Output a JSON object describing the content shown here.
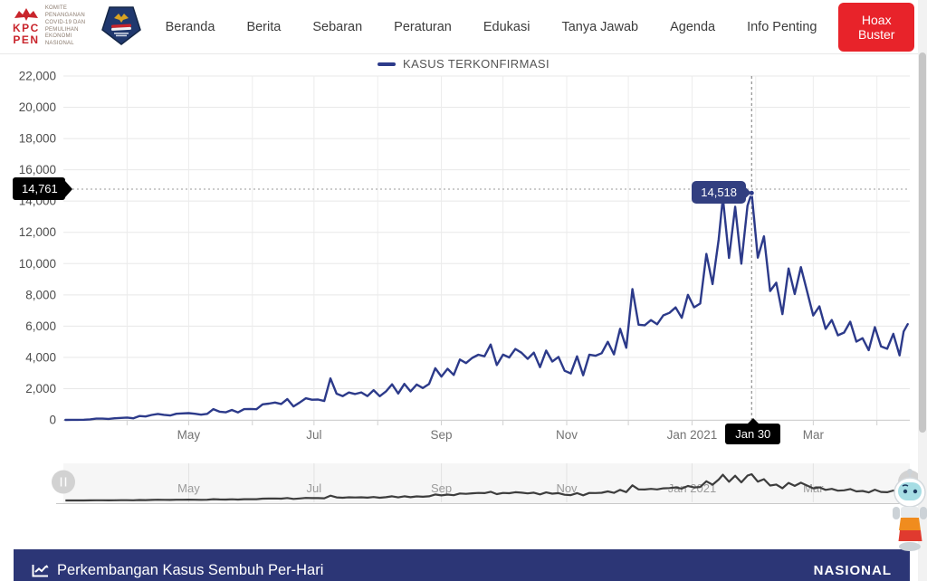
{
  "brand": {
    "kpc_line1": "KPC",
    "kpc_line2": "PEN",
    "committee": [
      "KOMITE PENANGANAN",
      "COVID-19 DAN PEMULIHAN",
      "EKONOMI NASIONAL"
    ]
  },
  "nav": {
    "items": [
      "Beranda",
      "Berita",
      "Sebaran",
      "Peraturan",
      "Edukasi",
      "Tanya Jawab",
      "Agenda",
      "Info Penting"
    ],
    "hoax_buster": "Hoax Buster"
  },
  "chart": {
    "legend_label": "KASUS TERKONFIRMASI",
    "max_label": "14,761",
    "tooltip_label": "14,518",
    "crosshair_date_label": "Jan 30"
  },
  "chart_data": {
    "type": "line",
    "title": "",
    "xlabel": "",
    "ylabel": "",
    "ylim": [
      0,
      22000
    ],
    "ytick_step": 2000,
    "grid": true,
    "legend_position": "top-center",
    "x_range": [
      "2020-03-01",
      "2021-04-17"
    ],
    "x_ticks": [
      {
        "date": "2020-05-01",
        "label": "May"
      },
      {
        "date": "2020-07-01",
        "label": "Jul"
      },
      {
        "date": "2020-09-01",
        "label": "Sep"
      },
      {
        "date": "2020-11-01",
        "label": "Nov"
      },
      {
        "date": "2021-01-01",
        "label": "Jan 2021"
      },
      {
        "date": "2021-03-01",
        "label": "Mar"
      }
    ],
    "annotations": {
      "max_line": {
        "value": 14761,
        "label": "14,761"
      },
      "tooltip": {
        "date": "2021-01-30",
        "value": 14518,
        "label": "14,518"
      },
      "crosshair_date_label": "Jan 30"
    },
    "colors": {
      "series": "#2c3a8a",
      "tooltip_bg": "#323f80",
      "navigator_series": "#3d3d3d",
      "footer_bar": "#2c3676",
      "hoax_button": "#e8232a"
    },
    "series": [
      {
        "name": "KASUS TERKONFIRMASI",
        "color": "#2c3a8a",
        "points": [
          [
            "2020-03-02",
            2
          ],
          [
            "2020-03-05",
            4
          ],
          [
            "2020-03-08",
            8
          ],
          [
            "2020-03-11",
            14
          ],
          [
            "2020-03-14",
            35
          ],
          [
            "2020-03-17",
            81
          ],
          [
            "2020-03-20",
            82
          ],
          [
            "2020-03-23",
            65
          ],
          [
            "2020-03-26",
            103
          ],
          [
            "2020-03-29",
            130
          ],
          [
            "2020-04-01",
            149
          ],
          [
            "2020-04-04",
            106
          ],
          [
            "2020-04-07",
            247
          ],
          [
            "2020-04-10",
            219
          ],
          [
            "2020-04-13",
            316
          ],
          [
            "2020-04-16",
            380
          ],
          [
            "2020-04-19",
            327
          ],
          [
            "2020-04-22",
            283
          ],
          [
            "2020-04-25",
            396
          ],
          [
            "2020-04-28",
            415
          ],
          [
            "2020-05-01",
            433
          ],
          [
            "2020-05-04",
            395
          ],
          [
            "2020-05-07",
            338
          ],
          [
            "2020-05-10",
            387
          ],
          [
            "2020-05-13",
            689
          ],
          [
            "2020-05-16",
            529
          ],
          [
            "2020-05-19",
            486
          ],
          [
            "2020-05-22",
            634
          ],
          [
            "2020-05-25",
            479
          ],
          [
            "2020-05-28",
            687
          ],
          [
            "2020-05-31",
            700
          ],
          [
            "2020-06-03",
            684
          ],
          [
            "2020-06-06",
            993
          ],
          [
            "2020-06-09",
            1043
          ],
          [
            "2020-06-12",
            1111
          ],
          [
            "2020-06-15",
            1017
          ],
          [
            "2020-06-18",
            1331
          ],
          [
            "2020-06-21",
            862
          ],
          [
            "2020-06-24",
            1113
          ],
          [
            "2020-06-27",
            1385
          ],
          [
            "2020-06-30",
            1293
          ],
          [
            "2020-07-03",
            1301
          ],
          [
            "2020-07-06",
            1209
          ],
          [
            "2020-07-09",
            2657
          ],
          [
            "2020-07-12",
            1681
          ],
          [
            "2020-07-15",
            1522
          ],
          [
            "2020-07-18",
            1752
          ],
          [
            "2020-07-21",
            1655
          ],
          [
            "2020-07-24",
            1761
          ],
          [
            "2020-07-27",
            1525
          ],
          [
            "2020-07-30",
            1904
          ],
          [
            "2020-08-02",
            1519
          ],
          [
            "2020-08-05",
            1815
          ],
          [
            "2020-08-08",
            2277
          ],
          [
            "2020-08-11",
            1693
          ],
          [
            "2020-08-14",
            2307
          ],
          [
            "2020-08-17",
            1821
          ],
          [
            "2020-08-20",
            2266
          ],
          [
            "2020-08-23",
            2037
          ],
          [
            "2020-08-26",
            2306
          ],
          [
            "2020-08-29",
            3308
          ],
          [
            "2020-09-01",
            2775
          ],
          [
            "2020-09-04",
            3269
          ],
          [
            "2020-09-07",
            2880
          ],
          [
            "2020-09-10",
            3861
          ],
          [
            "2020-09-13",
            3636
          ],
          [
            "2020-09-16",
            3963
          ],
          [
            "2020-09-19",
            4168
          ],
          [
            "2020-09-22",
            4071
          ],
          [
            "2020-09-25",
            4823
          ],
          [
            "2020-09-28",
            3509
          ],
          [
            "2020-10-01",
            4174
          ],
          [
            "2020-10-04",
            3992
          ],
          [
            "2020-10-07",
            4538
          ],
          [
            "2020-10-10",
            4294
          ],
          [
            "2020-10-13",
            3906
          ],
          [
            "2020-10-16",
            4301
          ],
          [
            "2020-10-19",
            3373
          ],
          [
            "2020-10-22",
            4432
          ],
          [
            "2020-10-25",
            3732
          ],
          [
            "2020-10-28",
            4029
          ],
          [
            "2020-10-31",
            3143
          ],
          [
            "2020-11-03",
            2973
          ],
          [
            "2020-11-06",
            4065
          ],
          [
            "2020-11-09",
            2853
          ],
          [
            "2020-11-12",
            4173
          ],
          [
            "2020-11-15",
            4106
          ],
          [
            "2020-11-18",
            4265
          ],
          [
            "2020-11-21",
            4998
          ],
          [
            "2020-11-24",
            4192
          ],
          [
            "2020-11-27",
            5828
          ],
          [
            "2020-11-30",
            4617
          ],
          [
            "2020-12-03",
            8369
          ],
          [
            "2020-12-06",
            6089
          ],
          [
            "2020-12-09",
            6058
          ],
          [
            "2020-12-12",
            6388
          ],
          [
            "2020-12-15",
            6120
          ],
          [
            "2020-12-18",
            6689
          ],
          [
            "2020-12-21",
            6848
          ],
          [
            "2020-12-24",
            7199
          ],
          [
            "2020-12-27",
            6528
          ],
          [
            "2020-12-30",
            8002
          ],
          [
            "2021-01-02",
            7203
          ],
          [
            "2021-01-05",
            7445
          ],
          [
            "2021-01-08",
            10617
          ],
          [
            "2021-01-11",
            8692
          ],
          [
            "2021-01-14",
            11557
          ],
          [
            "2021-01-16",
            14224
          ],
          [
            "2021-01-19",
            10365
          ],
          [
            "2021-01-22",
            13632
          ],
          [
            "2021-01-25",
            9994
          ],
          [
            "2021-01-28",
            13695
          ],
          [
            "2021-01-30",
            14518
          ],
          [
            "2021-02-02",
            10379
          ],
          [
            "2021-02-05",
            11749
          ],
          [
            "2021-02-08",
            8242
          ],
          [
            "2021-02-11",
            8776
          ],
          [
            "2021-02-14",
            6765
          ],
          [
            "2021-02-17",
            9687
          ],
          [
            "2021-02-20",
            8054
          ],
          [
            "2021-02-23",
            9775
          ],
          [
            "2021-02-26",
            8232
          ],
          [
            "2021-03-01",
            6680
          ],
          [
            "2021-03-04",
            7264
          ],
          [
            "2021-03-07",
            5826
          ],
          [
            "2021-03-10",
            6389
          ],
          [
            "2021-03-13",
            5412
          ],
          [
            "2021-03-16",
            5589
          ],
          [
            "2021-03-19",
            6279
          ],
          [
            "2021-03-22",
            5008
          ],
          [
            "2021-03-25",
            5227
          ],
          [
            "2021-03-28",
            4461
          ],
          [
            "2021-03-31",
            5937
          ],
          [
            "2021-04-03",
            4709
          ],
          [
            "2021-04-06",
            4549
          ],
          [
            "2021-04-09",
            5504
          ],
          [
            "2021-04-12",
            4127
          ],
          [
            "2021-04-14",
            5656
          ],
          [
            "2021-04-16",
            6125
          ]
        ]
      }
    ],
    "navigator": {
      "shown": true,
      "labels": [
        "May",
        "Jul",
        "Sep",
        "Nov",
        "Jan 2021",
        "Mar"
      ]
    }
  },
  "footer": {
    "title": "Perkembangan Kasus Sembuh Per-Hari",
    "region": "NASIONAL"
  }
}
